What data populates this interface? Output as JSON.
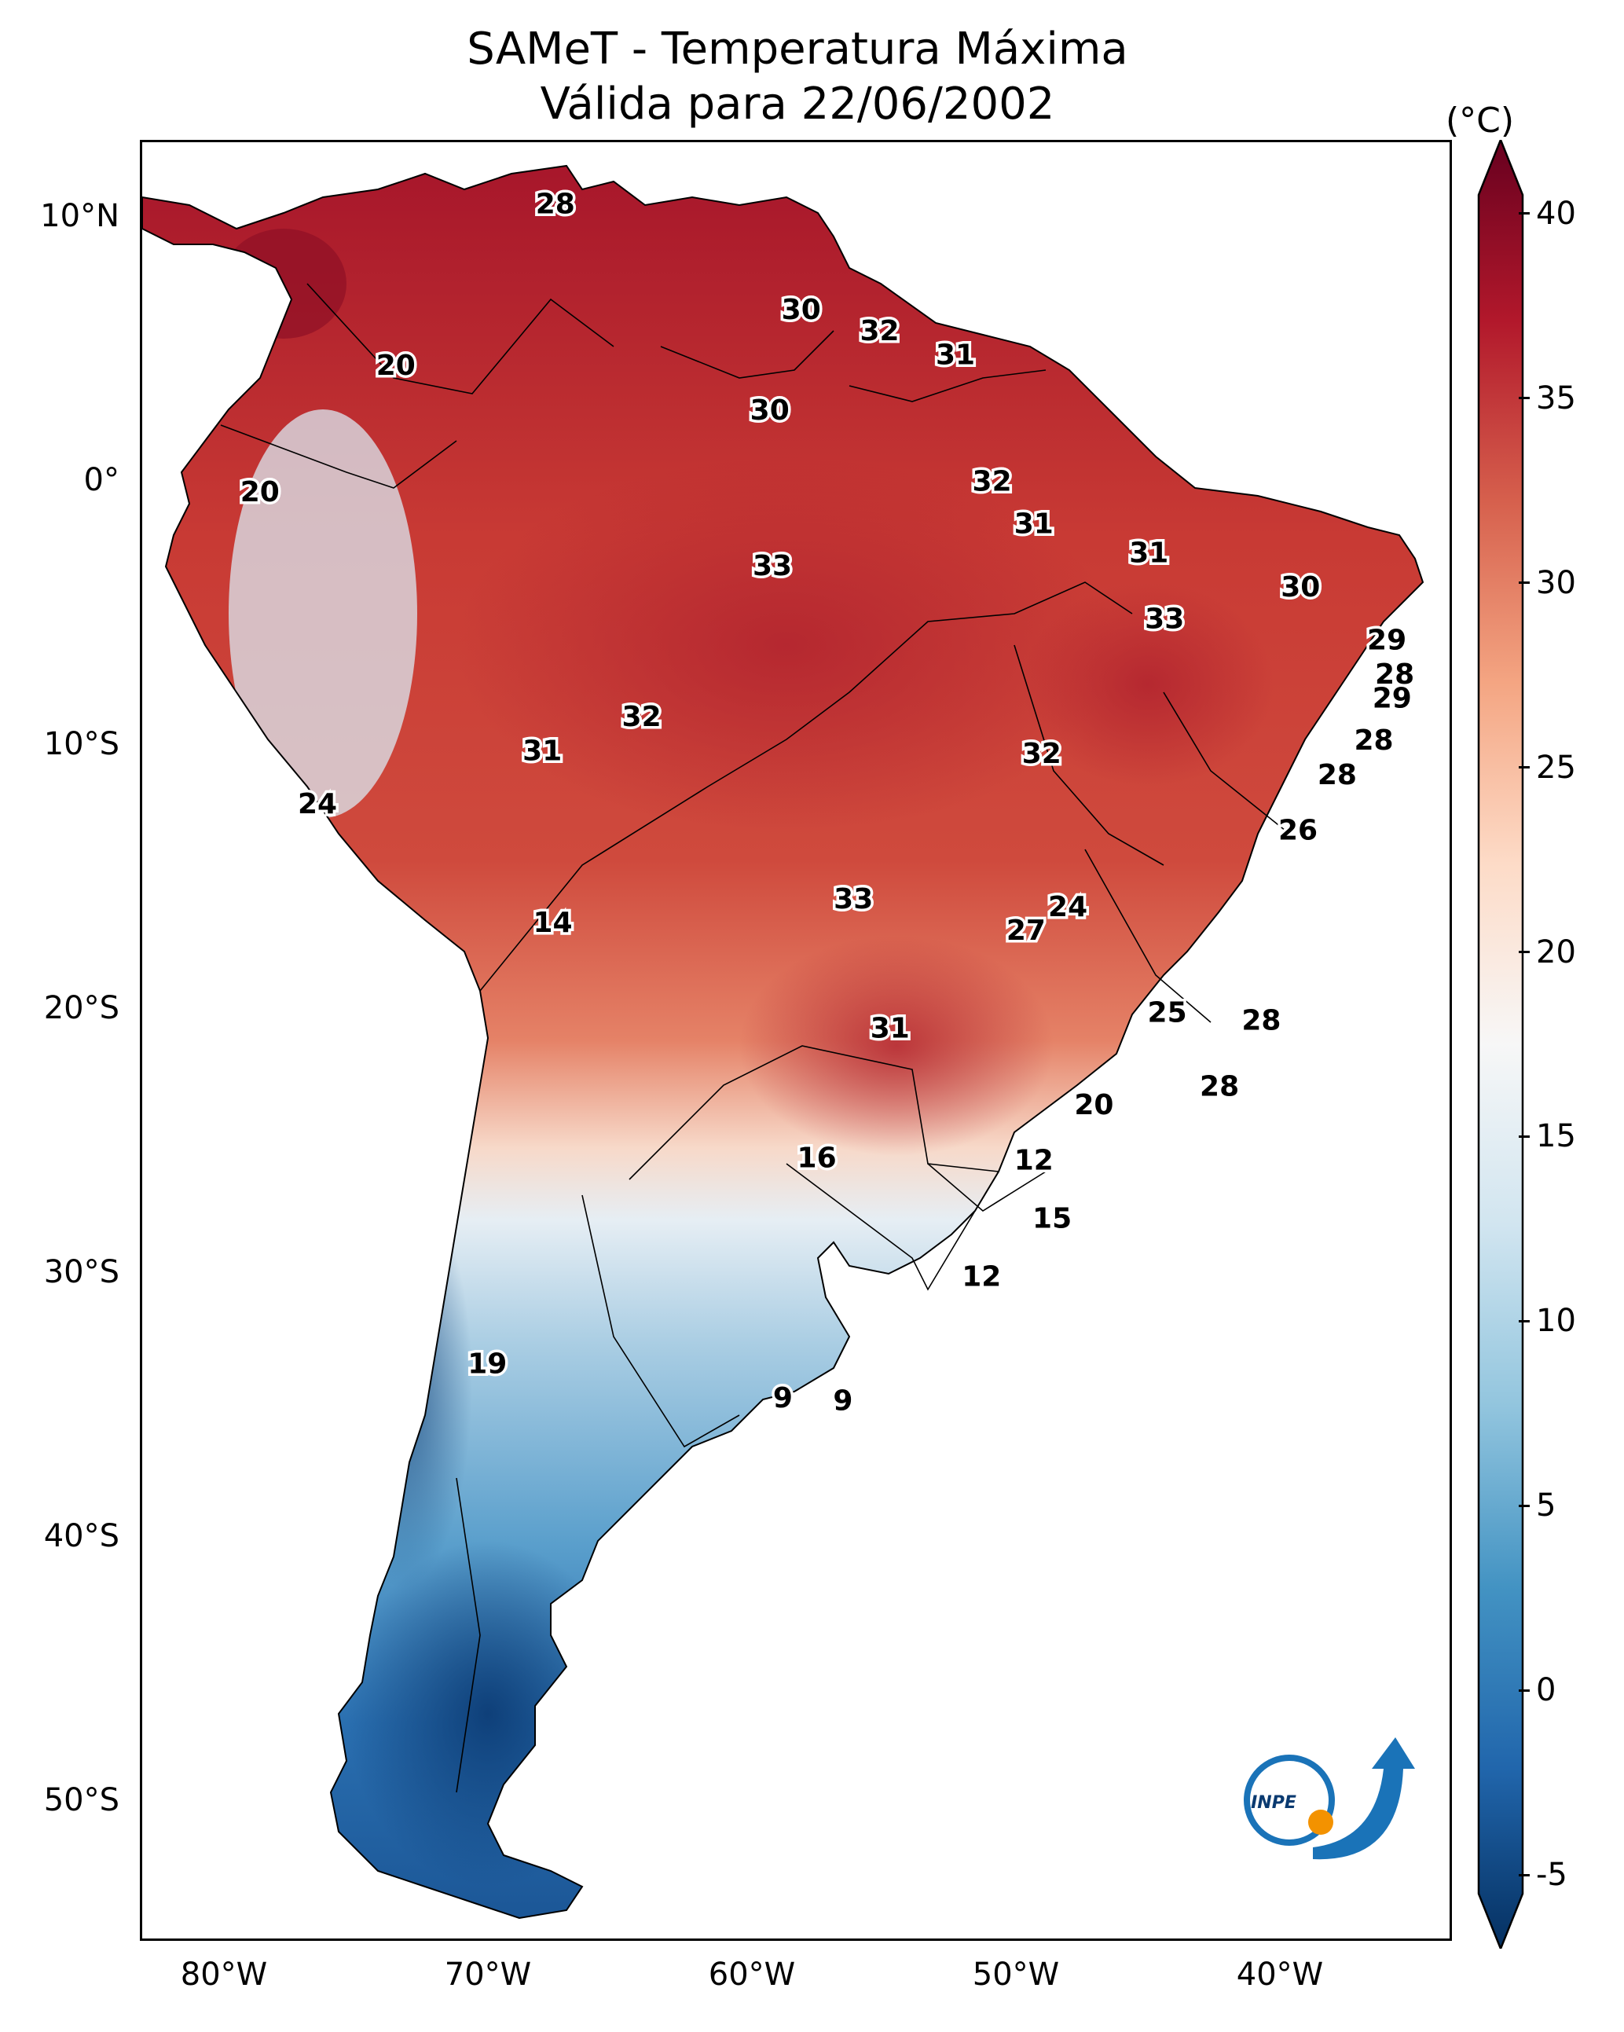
{
  "title": {
    "line1": "SAMeT - Temperatura Máxima",
    "line2": "Válida para 22/06/2002"
  },
  "colorbar": {
    "unit": "(°C)",
    "min": -7,
    "max": 42,
    "ticks": [
      "40",
      "35",
      "30",
      "25",
      "20",
      "15",
      "10",
      "5",
      "0",
      "-5"
    ],
    "colors": [
      "#053061",
      "#2166ac",
      "#4393c3",
      "#92c5de",
      "#d1e5f0",
      "#f7f7f7",
      "#fddbc7",
      "#f4a582",
      "#d6604d",
      "#b2182b",
      "#67001f"
    ]
  },
  "axes": {
    "lat_labels": [
      "10°N",
      "0°",
      "10°S",
      "20°S",
      "30°S",
      "40°S",
      "50°S"
    ],
    "lon_labels": [
      "80°W",
      "70°W",
      "60°W",
      "50°W",
      "40°W"
    ]
  },
  "contour_labels": [
    {
      "text": "28",
      "lon": -67.2,
      "lat": 10.6
    },
    {
      "text": "30",
      "lon": -57.8,
      "lat": 6.6
    },
    {
      "text": "32",
      "lon": -54.8,
      "lat": 5.8
    },
    {
      "text": "31",
      "lon": -51.9,
      "lat": 4.9
    },
    {
      "text": "20",
      "lon": -73.3,
      "lat": 4.5
    },
    {
      "text": "30",
      "lon": -59.0,
      "lat": 2.8
    },
    {
      "text": "32",
      "lon": -50.5,
      "lat": 0.1
    },
    {
      "text": "20",
      "lon": -78.5,
      "lat": -0.3
    },
    {
      "text": "31",
      "lon": -48.9,
      "lat": -1.5
    },
    {
      "text": "31",
      "lon": -44.5,
      "lat": -2.6
    },
    {
      "text": "33",
      "lon": -58.9,
      "lat": -3.1
    },
    {
      "text": "30",
      "lon": -38.7,
      "lat": -3.9
    },
    {
      "text": "33",
      "lon": -43.9,
      "lat": -5.1
    },
    {
      "text": "29",
      "lon": -35.4,
      "lat": -5.9
    },
    {
      "text": "28",
      "lon": -35.1,
      "lat": -7.2
    },
    {
      "text": "29",
      "lon": -35.2,
      "lat": -8.1
    },
    {
      "text": "32",
      "lon": -63.9,
      "lat": -8.8
    },
    {
      "text": "31",
      "lon": -67.7,
      "lat": -10.1
    },
    {
      "text": "32",
      "lon": -48.6,
      "lat": -10.2
    },
    {
      "text": "28",
      "lon": -35.9,
      "lat": -9.7
    },
    {
      "text": "28",
      "lon": -37.3,
      "lat": -11.0
    },
    {
      "text": "24",
      "lon": -76.3,
      "lat": -12.1
    },
    {
      "text": "26",
      "lon": -38.8,
      "lat": -13.1
    },
    {
      "text": "33",
      "lon": -55.8,
      "lat": -15.7
    },
    {
      "text": "24",
      "lon": -47.6,
      "lat": -16.0
    },
    {
      "text": "27",
      "lon": -49.2,
      "lat": -16.9
    },
    {
      "text": "14",
      "lon": -67.3,
      "lat": -16.6
    },
    {
      "text": "25",
      "lon": -43.8,
      "lat": -20.0
    },
    {
      "text": "31",
      "lon": -54.4,
      "lat": -20.6
    },
    {
      "text": "28",
      "lon": -40.2,
      "lat": -20.3
    },
    {
      "text": "28",
      "lon": -41.8,
      "lat": -22.8
    },
    {
      "text": "20",
      "lon": -46.6,
      "lat": -23.5
    },
    {
      "text": "16",
      "lon": -57.2,
      "lat": -25.5
    },
    {
      "text": "12",
      "lon": -48.9,
      "lat": -25.6
    },
    {
      "text": "15",
      "lon": -48.2,
      "lat": -27.8
    },
    {
      "text": "12",
      "lon": -50.9,
      "lat": -30.0
    },
    {
      "text": "19",
      "lon": -69.8,
      "lat": -33.3
    },
    {
      "text": "9",
      "lon": -58.5,
      "lat": -34.6
    },
    {
      "text": "9",
      "lon": -56.2,
      "lat": -34.7
    }
  ],
  "logo": {
    "text": "INPE"
  }
}
